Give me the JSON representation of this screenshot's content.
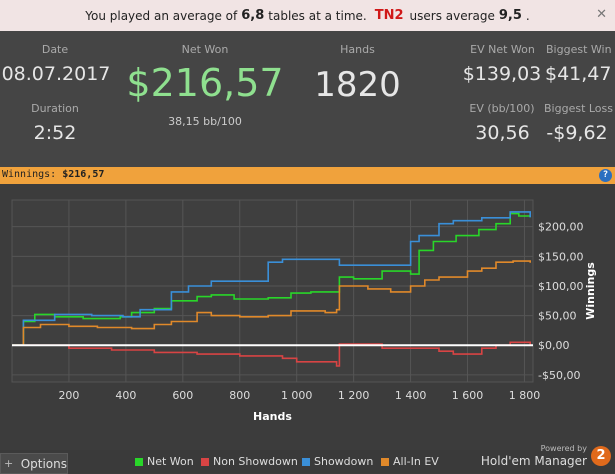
{
  "banner": {
    "text1": "You played an average of",
    "your_tables": "6,8",
    "text2": "tables at a time.",
    "site": "TN2",
    "text3": "users average",
    "site_average": "9,5",
    "text4": ".",
    "close_glyph": "✕"
  },
  "stats": {
    "date_label": "Date",
    "date": "08.07.2017",
    "duration_label": "Duration",
    "duration": "2:52",
    "net_won_label": "Net Won",
    "net_won": "$216,57",
    "bb_per_100": "38,15 bb/100",
    "hands_label": "Hands",
    "hands": "1820",
    "ev_net_won_label": "EV Net Won",
    "ev_net_won": "$139,03",
    "biggest_win_label": "Biggest Win",
    "biggest_win": "$41,47",
    "ev_bb_label": "EV (bb/100)",
    "ev_bb": "30,56",
    "biggest_loss_label": "Biggest Loss",
    "biggest_loss": "-$9,62"
  },
  "winnings_bar": {
    "label": "Winnings:",
    "value": "$216,57",
    "help_glyph": "?"
  },
  "footer": {
    "options_label": "Options",
    "options_glyph": "+",
    "powered_by": "Powered by",
    "brand": "Hold'em Manager",
    "brand_badge": "2"
  },
  "colors": {
    "net_won": "#29d629",
    "non_showdown": "#d84444",
    "showdown": "#3a8fd8",
    "all_in_ev": "#e0892a",
    "accent_green": "#8fe08f",
    "winbar": "#f0a23c"
  },
  "chart_data": {
    "type": "line",
    "xlabel": "Hands",
    "ylabel": "Winnings",
    "xlim": [
      0,
      1830
    ],
    "ylim": [
      -62,
      245
    ],
    "x_ticks": [
      200,
      400,
      600,
      800,
      1000,
      1200,
      1400,
      1600,
      1800
    ],
    "x_tick_labels": [
      "200",
      "400",
      "600",
      "800",
      "1 000",
      "1 200",
      "1 400",
      "1 600",
      "1 800"
    ],
    "y_ticks": [
      -50,
      0,
      50,
      100,
      150,
      200
    ],
    "y_tick_labels": [
      "-$50,00",
      "$0,00",
      "$50,00",
      "$100,00",
      "$150,00",
      "$200,00"
    ],
    "grid": true,
    "legend_position": "bottom",
    "series": [
      {
        "name": "Net Won",
        "color": "#29d629",
        "x": [
          0,
          40,
          80,
          150,
          250,
          380,
          420,
          500,
          560,
          650,
          700,
          780,
          900,
          980,
          1050,
          1150,
          1200,
          1300,
          1400,
          1430,
          1480,
          1560,
          1640,
          1700,
          1750,
          1780,
          1820
        ],
        "y": [
          0,
          40,
          52,
          48,
          45,
          48,
          55,
          62,
          75,
          82,
          85,
          78,
          80,
          88,
          90,
          115,
          112,
          125,
          120,
          160,
          175,
          185,
          195,
          205,
          222,
          218,
          216
        ]
      },
      {
        "name": "Non Showdown",
        "color": "#d84444",
        "x": [
          0,
          60,
          200,
          350,
          500,
          650,
          800,
          950,
          1000,
          1140,
          1150,
          1300,
          1500,
          1550,
          1650,
          1700,
          1750,
          1820
        ],
        "y": [
          0,
          0,
          -5,
          -8,
          -12,
          -15,
          -18,
          -22,
          -28,
          -35,
          2,
          -5,
          -10,
          -15,
          -5,
          0,
          5,
          0
        ]
      },
      {
        "name": "Showdown",
        "color": "#3a8fd8",
        "x": [
          0,
          40,
          150,
          280,
          390,
          450,
          560,
          620,
          700,
          800,
          860,
          900,
          950,
          1050,
          1150,
          1300,
          1400,
          1430,
          1500,
          1550,
          1650,
          1750,
          1820
        ],
        "y": [
          0,
          42,
          52,
          50,
          48,
          60,
          90,
          100,
          108,
          108,
          108,
          140,
          145,
          145,
          135,
          135,
          175,
          185,
          205,
          210,
          215,
          225,
          216
        ]
      },
      {
        "name": "All-In EV",
        "color": "#e0892a",
        "x": [
          0,
          40,
          100,
          200,
          300,
          420,
          500,
          560,
          650,
          700,
          800,
          900,
          980,
          1100,
          1140,
          1150,
          1250,
          1330,
          1400,
          1450,
          1500,
          1600,
          1650,
          1700,
          1760,
          1820
        ],
        "y": [
          0,
          30,
          35,
          32,
          30,
          28,
          35,
          40,
          55,
          50,
          48,
          50,
          58,
          55,
          60,
          100,
          95,
          90,
          100,
          110,
          115,
          125,
          130,
          140,
          142,
          139
        ]
      }
    ]
  }
}
